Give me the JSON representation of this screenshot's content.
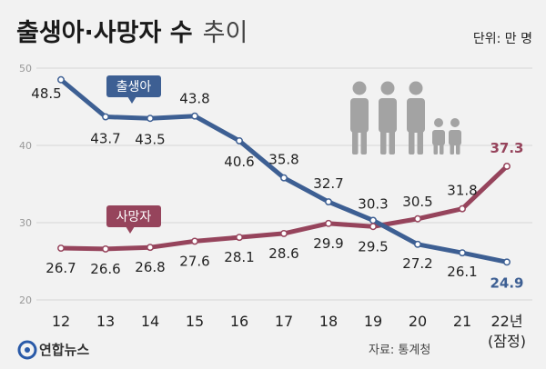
{
  "header": {
    "title_bold": "출생아·사망자 수",
    "title_light": "추이",
    "unit": "단위: 만 명"
  },
  "footer": {
    "source": "자료: 통계청",
    "logo": "연합뉴스"
  },
  "colors": {
    "births": "#3d5f93",
    "deaths": "#96445c",
    "grid": "#d5d5d5",
    "people": "#a3a3a3"
  },
  "chart_data": {
    "type": "line",
    "title": "출생아·사망자 수 추이",
    "unit": "단위: 만 명",
    "x": [
      "12",
      "13",
      "14",
      "15",
      "16",
      "17",
      "18",
      "19",
      "20",
      "21",
      "22년"
    ],
    "x_note": "(잠정)",
    "ylim": [
      20,
      50
    ],
    "yticks": [
      20,
      30,
      40,
      50
    ],
    "grid": true,
    "series": [
      {
        "name": "출생아",
        "color": "#3d5f93",
        "values": [
          48.5,
          43.7,
          43.5,
          43.8,
          40.6,
          35.8,
          32.7,
          30.3,
          27.2,
          26.1,
          24.9
        ],
        "labels": [
          "48.5",
          "43.7",
          "43.5",
          "43.8",
          "40.6",
          "35.8",
          "32.7",
          "30.3",
          "27.2",
          "26.1",
          "24.9"
        ]
      },
      {
        "name": "사망자",
        "color": "#96445c",
        "values": [
          26.7,
          26.6,
          26.8,
          27.6,
          28.1,
          28.6,
          29.9,
          29.5,
          30.5,
          31.8,
          37.3
        ],
        "labels": [
          "26.7",
          "26.6",
          "26.8",
          "27.6",
          "28.1",
          "28.6",
          "29.9",
          "29.5",
          "30.5",
          "31.8",
          "37.3"
        ]
      }
    ],
    "source": "자료: 통계청"
  }
}
